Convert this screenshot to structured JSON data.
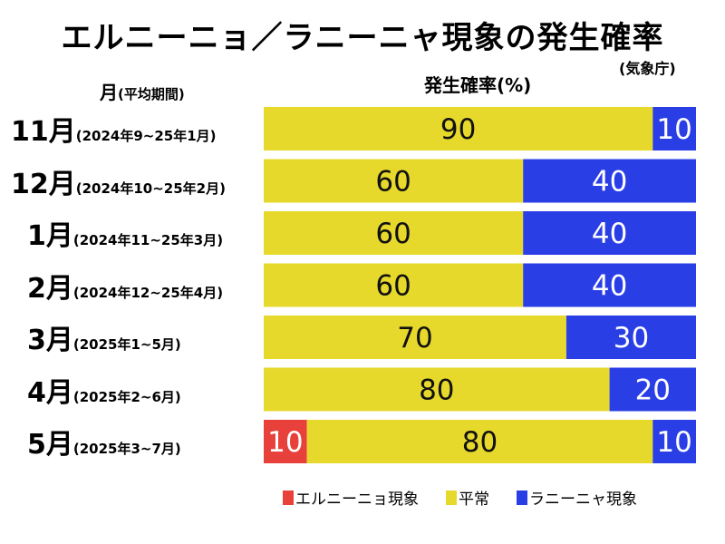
{
  "chart_data": {
    "type": "bar",
    "stacked": true,
    "orientation": "horizontal",
    "title": "エルニーニョ／ラニーニャ現象の発生確率",
    "source": "(気象庁)",
    "xlabel": "発生確率(%)",
    "ylabel": "月",
    "ylabel_sub": "(平均期間)",
    "xlim": [
      0,
      100
    ],
    "grid": false,
    "legend_position": "bottom",
    "categories": [
      {
        "month": "11月",
        "period": "(2024年9~25年1月)"
      },
      {
        "month": "12月",
        "period": "(2024年10~25年2月)"
      },
      {
        "month": "1月",
        "period": "(2024年11~25年3月)"
      },
      {
        "month": "2月",
        "period": "(2024年12~25年4月)"
      },
      {
        "month": "3月",
        "period": "(2025年1~5月)"
      },
      {
        "month": "4月",
        "period": "(2025年2~6月)"
      },
      {
        "month": "5月",
        "period": "(2025年3~7月)"
      }
    ],
    "series": [
      {
        "name": "エルニーニョ現象",
        "color": "#e8403a",
        "values": [
          0,
          0,
          0,
          0,
          0,
          0,
          10
        ]
      },
      {
        "name": "平常",
        "color": "#e6d92c",
        "values": [
          90,
          60,
          60,
          60,
          70,
          80,
          80
        ]
      },
      {
        "name": "ラニーニャ現象",
        "color": "#2a3ee6",
        "values": [
          10,
          40,
          40,
          40,
          30,
          20,
          10
        ]
      }
    ],
    "label_color": "#111111",
    "label_color_dark_bg": "#ffffff"
  }
}
